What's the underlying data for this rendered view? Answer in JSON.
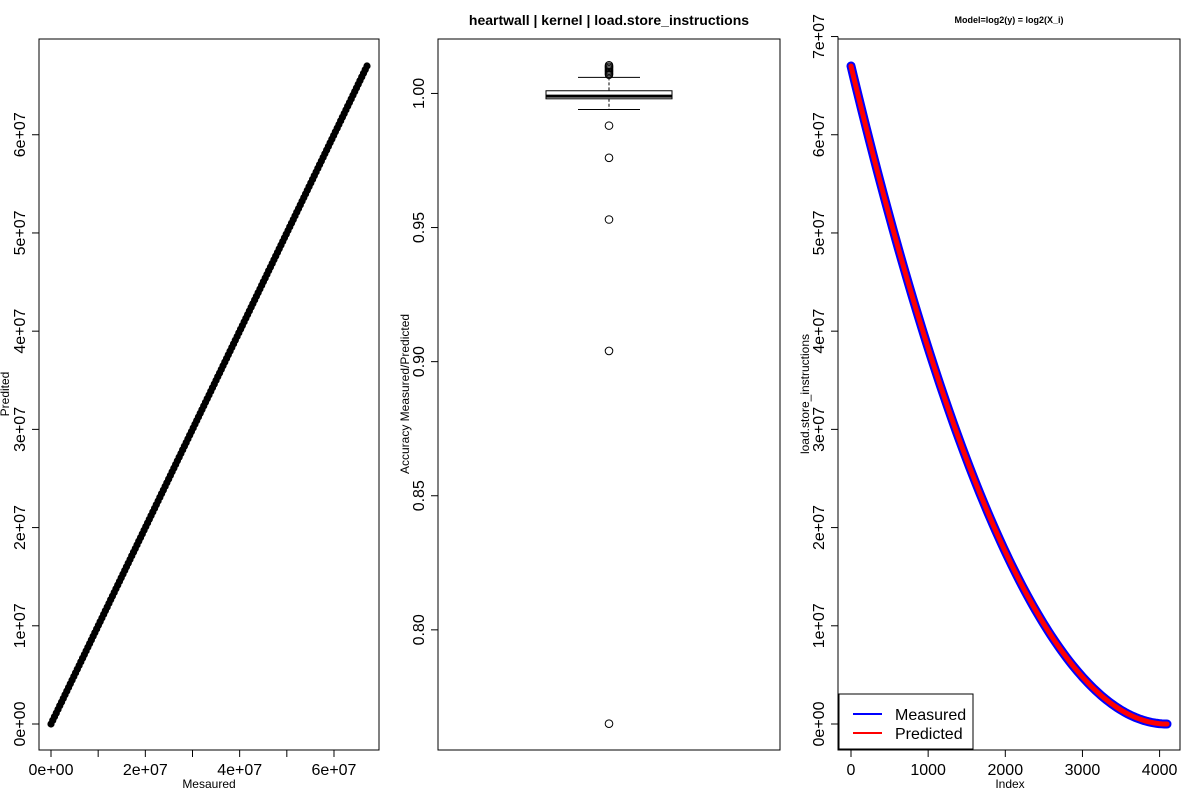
{
  "chart_data": [
    {
      "type": "scatter",
      "title": "",
      "xlabel": "Mesaured",
      "ylabel": "Predited",
      "xlim": [
        0,
        67000000
      ],
      "ylim": [
        0,
        67000000
      ],
      "x_ticks": [
        {
          "value": 0,
          "label": "0e+00"
        },
        {
          "value": 10000000,
          "label": ""
        },
        {
          "value": 20000000,
          "label": "2e+07"
        },
        {
          "value": 30000000,
          "label": ""
        },
        {
          "value": 40000000,
          "label": "4e+07"
        },
        {
          "value": 50000000,
          "label": ""
        },
        {
          "value": 60000000,
          "label": "6e+07"
        }
      ],
      "y_ticks": [
        {
          "value": 0,
          "label": "0e+00"
        },
        {
          "value": 10000000,
          "label": "1e+07"
        },
        {
          "value": 20000000,
          "label": "2e+07"
        },
        {
          "value": 30000000,
          "label": "3e+07"
        },
        {
          "value": 40000000,
          "label": "4e+07"
        },
        {
          "value": 50000000,
          "label": "5e+07"
        },
        {
          "value": 60000000,
          "label": "6e+07"
        }
      ],
      "points": {
        "x_start": 0,
        "x_end": 67000000,
        "slope": 1,
        "count": 4096
      },
      "grid": false
    },
    {
      "type": "box",
      "title": "heartwall | kernel | load.store_instructions",
      "xlabel": "",
      "ylabel": "Accuracy  Measured/Predicted",
      "ylim": [
        0.765,
        1.02
      ],
      "y_ticks": [
        {
          "value": 0.8,
          "label": "0.80"
        },
        {
          "value": 0.85,
          "label": "0.85"
        },
        {
          "value": 0.9,
          "label": "0.90"
        },
        {
          "value": 0.95,
          "label": "0.95"
        },
        {
          "value": 1.0,
          "label": "1.00"
        }
      ],
      "box": {
        "whisker_low": 0.994,
        "q1": 0.998,
        "median": 0.999,
        "q3": 1.001,
        "whisker_high": 1.006
      },
      "outliers": [
        1.007,
        1.0075,
        1.008,
        1.0085,
        1.009,
        1.0095,
        1.01,
        1.0105,
        0.988,
        0.976,
        0.953,
        0.904,
        0.765
      ],
      "grid": false
    },
    {
      "type": "line",
      "title": "Model=log2(y) = log2(X_i)",
      "xlabel": "Index",
      "ylabel": "load.store_instructions",
      "xlim": [
        0,
        4096
      ],
      "ylim": [
        0,
        67000000
      ],
      "x_ticks": [
        {
          "value": 0,
          "label": "0"
        },
        {
          "value": 1000,
          "label": "1000"
        },
        {
          "value": 2000,
          "label": "2000"
        },
        {
          "value": 3000,
          "label": "3000"
        },
        {
          "value": 4000,
          "label": "4000"
        }
      ],
      "y_ticks": [
        {
          "value": 0,
          "label": "0e+00"
        },
        {
          "value": 10000000,
          "label": "1e+07"
        },
        {
          "value": 20000000,
          "label": "2e+07"
        },
        {
          "value": 30000000,
          "label": "3e+07"
        },
        {
          "value": 40000000,
          "label": "4e+07"
        },
        {
          "value": 50000000,
          "label": "5e+07"
        },
        {
          "value": 60000000,
          "label": "6e+07"
        },
        {
          "value": 70000000,
          "label": "7e+07"
        }
      ],
      "series": [
        {
          "name": "Measured",
          "color": "#0000ff",
          "curve": "decreasing-quadratic",
          "start": 67000000,
          "end": 0,
          "points": 4096
        },
        {
          "name": "Predicted",
          "color": "#ff0000",
          "curve": "decreasing-quadratic",
          "start": 67000000,
          "end": 0,
          "points": 4096
        }
      ],
      "legend_position": "bottom-left",
      "grid": false
    }
  ]
}
